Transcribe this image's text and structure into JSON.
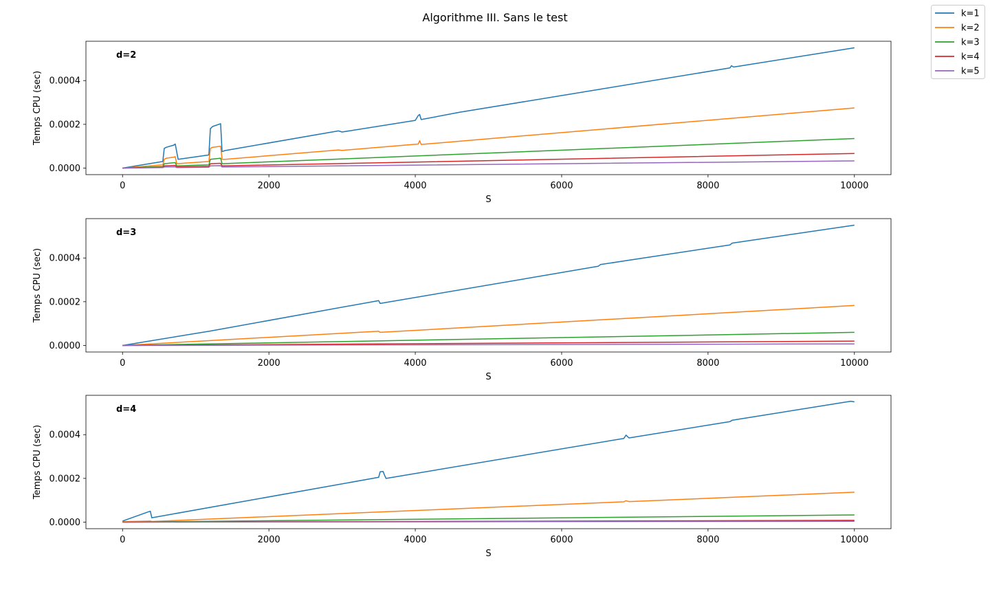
{
  "title": "Algorithme III. Sans le test",
  "legend": {
    "placement": "top-right (outside)",
    "entries": [
      {
        "label": "k=1",
        "color": "#1f77b4"
      },
      {
        "label": "k=2",
        "color": "#ff7f0e"
      },
      {
        "label": "k=3",
        "color": "#2ca02c"
      },
      {
        "label": "k=4",
        "color": "#d62728"
      },
      {
        "label": "k=5",
        "color": "#9467bd"
      }
    ]
  },
  "chart_data": [
    {
      "type": "line",
      "annotation": "d=2",
      "xlabel": "S",
      "ylabel": "Temps CPU (sec)",
      "xlim": [
        -500,
        10500
      ],
      "ylim": [
        -3e-05,
        0.00058
      ],
      "xticks": [
        0,
        2000,
        4000,
        6000,
        8000,
        10000
      ],
      "xtick_labels": [
        "0",
        "2000",
        "4000",
        "6000",
        "8000",
        "10000"
      ],
      "yticks": [
        0,
        0.0002,
        0.0004
      ],
      "ytick_labels": [
        "0.0000",
        "0.0002",
        "0.0004"
      ],
      "grid": false,
      "series": [
        {
          "name": "k=1",
          "color": "#1f77b4",
          "x": [
            0,
            550,
            570,
            600,
            700,
            720,
            760,
            1180,
            1200,
            1230,
            1340,
            1360,
            1400,
            2950,
            3000,
            4000,
            4040,
            4060,
            4080,
            4600,
            8300,
            8320,
            8350,
            10000
          ],
          "y": [
            0,
            3e-05,
            9e-05,
            9.5e-05,
            0.000105,
            0.00011,
            4e-05,
            6e-05,
            0.00018,
            0.00019,
            0.000203,
            7.5e-05,
            8e-05,
            0.00017,
            0.000165,
            0.000218,
            0.00024,
            0.000245,
            0.000222,
            0.000255,
            0.000458,
            0.000468,
            0.000462,
            0.00055
          ]
        },
        {
          "name": "k=2",
          "color": "#ff7f0e",
          "x": [
            0,
            550,
            570,
            600,
            700,
            720,
            740,
            1180,
            1200,
            1230,
            1340,
            1360,
            1400,
            2950,
            3000,
            4040,
            4060,
            4080,
            10000
          ],
          "y": [
            0,
            1.5e-05,
            4e-05,
            4.5e-05,
            5e-05,
            5.2e-05,
            2e-05,
            3e-05,
            9e-05,
            9.5e-05,
            0.0001,
            4e-05,
            4e-05,
            8.3e-05,
            8.1e-05,
            0.00011,
            0.000125,
            0.000108,
            0.000275
          ]
        },
        {
          "name": "k=3",
          "color": "#2ca02c",
          "x": [
            0,
            550,
            570,
            720,
            740,
            1180,
            1200,
            1340,
            1360,
            10000
          ],
          "y": [
            0,
            7e-06,
            2e-05,
            2.5e-05,
            1e-05,
            1.5e-05,
            4e-05,
            4.5e-05,
            2e-05,
            0.000135
          ]
        },
        {
          "name": "k=4",
          "color": "#d62728",
          "x": [
            0,
            550,
            570,
            720,
            740,
            1180,
            1200,
            1340,
            1360,
            10000
          ],
          "y": [
            0,
            4e-06,
            1e-05,
            1.2e-05,
            5e-06,
            8e-06,
            2e-05,
            2.2e-05,
            1e-05,
            6.7e-05
          ]
        },
        {
          "name": "k=5",
          "color": "#9467bd",
          "x": [
            0,
            550,
            570,
            720,
            740,
            1180,
            1200,
            1340,
            1360,
            10000
          ],
          "y": [
            0,
            2e-06,
            5e-06,
            6e-06,
            2.5e-06,
            4e-06,
            1e-05,
            1.1e-05,
            5e-06,
            3.3e-05
          ]
        }
      ]
    },
    {
      "type": "line",
      "annotation": "d=3",
      "xlabel": "S",
      "ylabel": "Temps CPU (sec)",
      "xlim": [
        -500,
        10500
      ],
      "ylim": [
        -3e-05,
        0.00058
      ],
      "xticks": [
        0,
        2000,
        4000,
        6000,
        8000,
        10000
      ],
      "xtick_labels": [
        "0",
        "2000",
        "4000",
        "6000",
        "8000",
        "10000"
      ],
      "yticks": [
        0,
        0.0002,
        0.0004
      ],
      "ytick_labels": [
        "0.0000",
        "0.0002",
        "0.0004"
      ],
      "grid": false,
      "series": [
        {
          "name": "k=1",
          "color": "#1f77b4",
          "x": [
            0,
            1200,
            3450,
            3500,
            3520,
            6500,
            6530,
            8300,
            8330,
            10000
          ],
          "y": [
            0,
            6.6e-05,
            0.000202,
            0.000205,
            0.000192,
            0.000362,
            0.00037,
            0.00046,
            0.000468,
            0.00055
          ]
        },
        {
          "name": "k=2",
          "color": "#ff7f0e",
          "x": [
            0,
            3450,
            3500,
            3520,
            10000
          ],
          "y": [
            0,
            6.4e-05,
            6.5e-05,
            6e-05,
            0.000183
          ]
        },
        {
          "name": "k=3",
          "color": "#2ca02c",
          "x": [
            0,
            10000
          ],
          "y": [
            0,
            6e-05
          ]
        },
        {
          "name": "k=4",
          "color": "#d62728",
          "x": [
            0,
            10000
          ],
          "y": [
            0,
            2e-05
          ]
        },
        {
          "name": "k=5",
          "color": "#9467bd",
          "x": [
            0,
            10000
          ],
          "y": [
            0,
            7e-06
          ]
        }
      ]
    },
    {
      "type": "line",
      "annotation": "d=4",
      "xlabel": "S",
      "ylabel": "Temps CPU (sec)",
      "xlim": [
        -500,
        10500
      ],
      "ylim": [
        -3e-05,
        0.00058
      ],
      "xticks": [
        0,
        2000,
        4000,
        6000,
        8000,
        10000
      ],
      "xtick_labels": [
        "0",
        "2000",
        "4000",
        "6000",
        "8000",
        "10000"
      ],
      "yticks": [
        0,
        0.0002,
        0.0004
      ],
      "ytick_labels": [
        "0.0000",
        "0.0002",
        "0.0004"
      ],
      "grid": false,
      "series": [
        {
          "name": "k=1",
          "color": "#1f77b4",
          "x": [
            0,
            360,
            380,
            400,
            3500,
            3520,
            3560,
            3580,
            3600,
            6850,
            6880,
            6920,
            8300,
            8330,
            9950,
            10000
          ],
          "y": [
            5e-06,
            4.8e-05,
            5e-05,
            2e-05,
            0.000205,
            0.00023,
            0.000232,
            0.000215,
            0.0002,
            0.000383,
            0.000398,
            0.000385,
            0.00046,
            0.000466,
            0.000553,
            0.00055
          ]
        },
        {
          "name": "k=2",
          "color": "#ff7f0e",
          "x": [
            0,
            380,
            400,
            6850,
            6880,
            6920,
            10000
          ],
          "y": [
            2e-06,
            5e-06,
            3e-06,
            9.3e-05,
            9.8e-05,
            9.4e-05,
            0.000137
          ]
        },
        {
          "name": "k=3",
          "color": "#2ca02c",
          "x": [
            0,
            10000
          ],
          "y": [
            0,
            3.3e-05
          ]
        },
        {
          "name": "k=4",
          "color": "#d62728",
          "x": [
            0,
            10000
          ],
          "y": [
            0,
            8e-06
          ]
        },
        {
          "name": "k=5",
          "color": "#9467bd",
          "x": [
            0,
            10000
          ],
          "y": [
            0,
            4e-06
          ]
        }
      ]
    }
  ]
}
